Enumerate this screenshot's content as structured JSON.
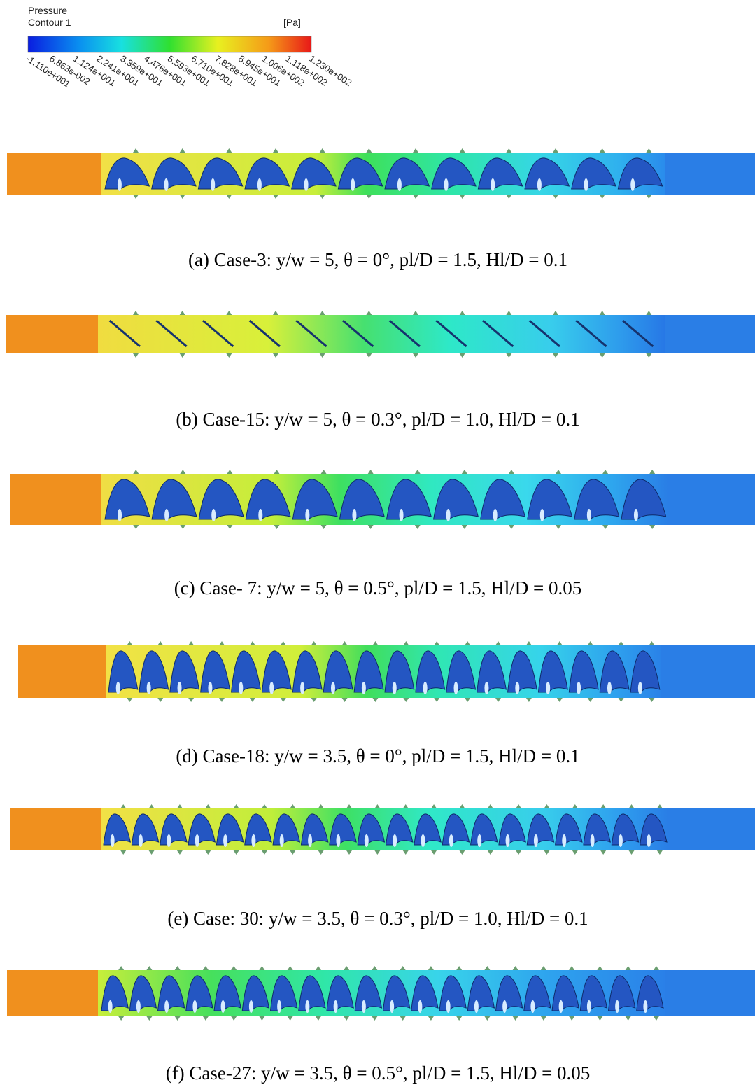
{
  "legend": {
    "title": [
      "Pressure",
      "Contour 1"
    ],
    "unit": "[Pa]",
    "ticks": [
      "-1.110e+001",
      "6.863e-002",
      "1.124e+001",
      "2.241e+001",
      "3.359e+001",
      "4.476e+001",
      "5.593e+001",
      "6.710e+001",
      "7.828e+001",
      "8.945e+001",
      "1.006e+002",
      "1.118e+002",
      "1.230e+002"
    ]
  },
  "panels": [
    {
      "caption": "(a) Case-3: y/w = 5, θ = 0°, pl/D = 1.5, Hl/D = 0.1"
    },
    {
      "caption": "(b) Case-15: y/w = 5, θ = 0.3°, pl/D = 1.0, Hl/D = 0.1"
    },
    {
      "caption": "(c) Case- 7: y/w = 5, θ = 0.5°, pl/D = 1.5, Hl/D = 0.05"
    },
    {
      "caption": "(d) Case-18: y/w = 3.5, θ = 0°, pl/D = 1.5, Hl/D = 0.1"
    },
    {
      "caption": "(e) Case: 30: y/w = 3.5, θ = 0.3°, pl/D = 1.0, Hl/D = 0.1"
    },
    {
      "caption": "(f) Case-27: y/w = 3.5, θ = 0.5°, pl/D = 1.5, Hl/D = 0.05"
    }
  ]
}
